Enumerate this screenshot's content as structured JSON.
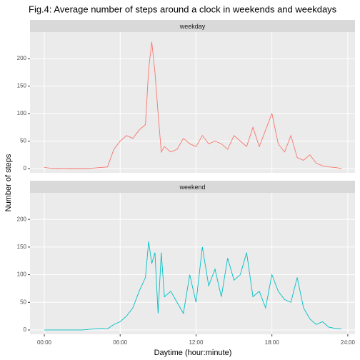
{
  "chart_data": {
    "type": "line",
    "title": "Fig.4: Average number of steps around a clock in weekends and weekdays",
    "xlabel": "Daytime (hour:minute)",
    "ylabel": "Number of steps",
    "x": [
      0,
      0.5,
      1,
      1.5,
      2,
      2.5,
      3,
      3.5,
      4,
      4.5,
      5,
      5.5,
      6,
      6.5,
      7,
      7.5,
      8,
      8.25,
      8.5,
      8.75,
      9,
      9.25,
      9.5,
      10,
      10.5,
      11,
      11.5,
      12,
      12.5,
      13,
      13.5,
      14,
      14.5,
      15,
      15.5,
      16,
      16.5,
      17,
      17.5,
      18,
      18.5,
      19,
      19.5,
      20,
      20.5,
      21,
      21.5,
      22,
      22.5,
      23,
      23.5
    ],
    "series": [
      {
        "name": "weekday",
        "color": "#F8766D",
        "values": [
          2,
          0.5,
          0,
          0.5,
          0,
          0,
          0,
          0,
          1,
          2,
          3,
          35,
          50,
          60,
          55,
          70,
          80,
          180,
          230,
          175,
          100,
          30,
          40,
          30,
          35,
          55,
          45,
          40,
          60,
          45,
          50,
          45,
          35,
          60,
          50,
          40,
          75,
          40,
          70,
          100,
          45,
          30,
          60,
          20,
          15,
          25,
          10,
          5,
          3,
          2,
          0
        ]
      },
      {
        "name": "weekend",
        "color": "#00BFC4",
        "values": [
          0,
          0,
          0,
          0,
          0,
          0,
          0,
          1,
          2,
          3,
          2,
          10,
          15,
          25,
          40,
          70,
          95,
          160,
          120,
          140,
          30,
          140,
          60,
          70,
          50,
          30,
          100,
          50,
          150,
          80,
          110,
          60,
          130,
          90,
          100,
          140,
          60,
          70,
          40,
          100,
          70,
          55,
          50,
          95,
          40,
          20,
          10,
          15,
          5,
          3,
          2
        ]
      }
    ],
    "xlim": [
      -1.13,
      24.57
    ],
    "ylim": [
      -7.8,
      248
    ],
    "xticks": [
      {
        "value": 0,
        "label": "00:00"
      },
      {
        "value": 6,
        "label": "06:00"
      },
      {
        "value": 12,
        "label": "12:00"
      },
      {
        "value": 18,
        "label": "18:00"
      },
      {
        "value": 24,
        "label": "24:00"
      }
    ],
    "yticks": [
      0,
      50,
      100,
      150,
      200
    ],
    "grid": true
  }
}
